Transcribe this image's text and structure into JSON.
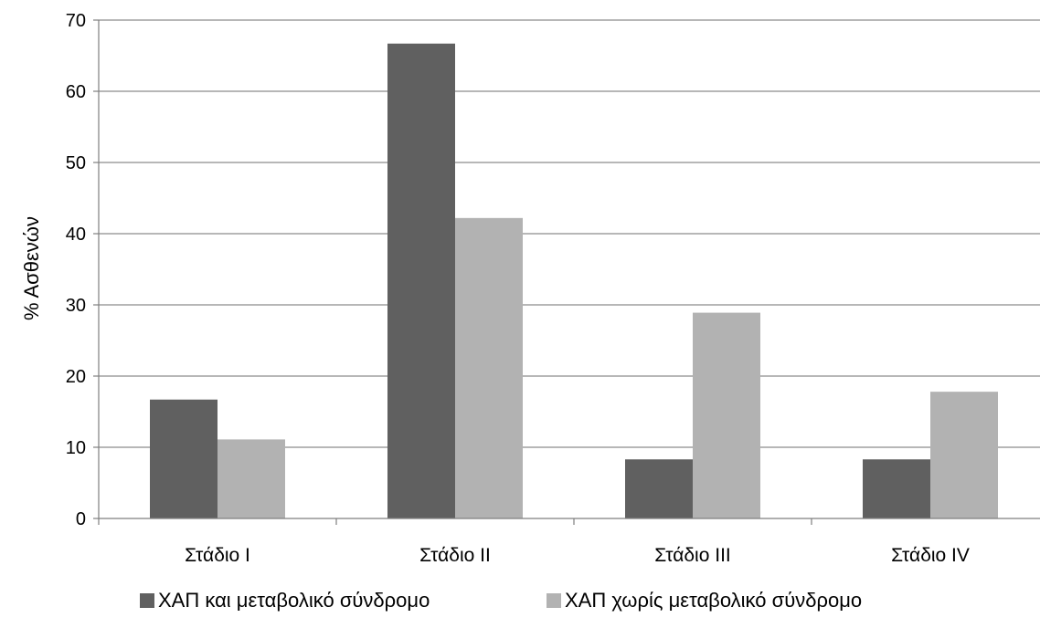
{
  "chart_data": {
    "type": "bar",
    "title": "",
    "xlabel": "",
    "ylabel": "% Ασθενών",
    "ylim": [
      0,
      70
    ],
    "yticks": [
      0,
      10,
      20,
      30,
      40,
      50,
      60,
      70
    ],
    "grid": true,
    "legend_position": "bottom",
    "categories": [
      "Στάδιο Ι",
      "Στάδιο ΙΙ",
      "Στάδιο ΙΙΙ",
      "Στάδιο ΙV"
    ],
    "series": [
      {
        "name": "ΧΑΠ και μεταβολικό σύνδρομο",
        "color": "#606060",
        "values": [
          16.7,
          66.7,
          8.3,
          8.3
        ]
      },
      {
        "name": "ΧΑΠ χωρίς μεταβολικό σύνδρομο",
        "color": "#b2b2b2",
        "values": [
          11.1,
          42.2,
          28.9,
          17.8
        ]
      }
    ]
  }
}
